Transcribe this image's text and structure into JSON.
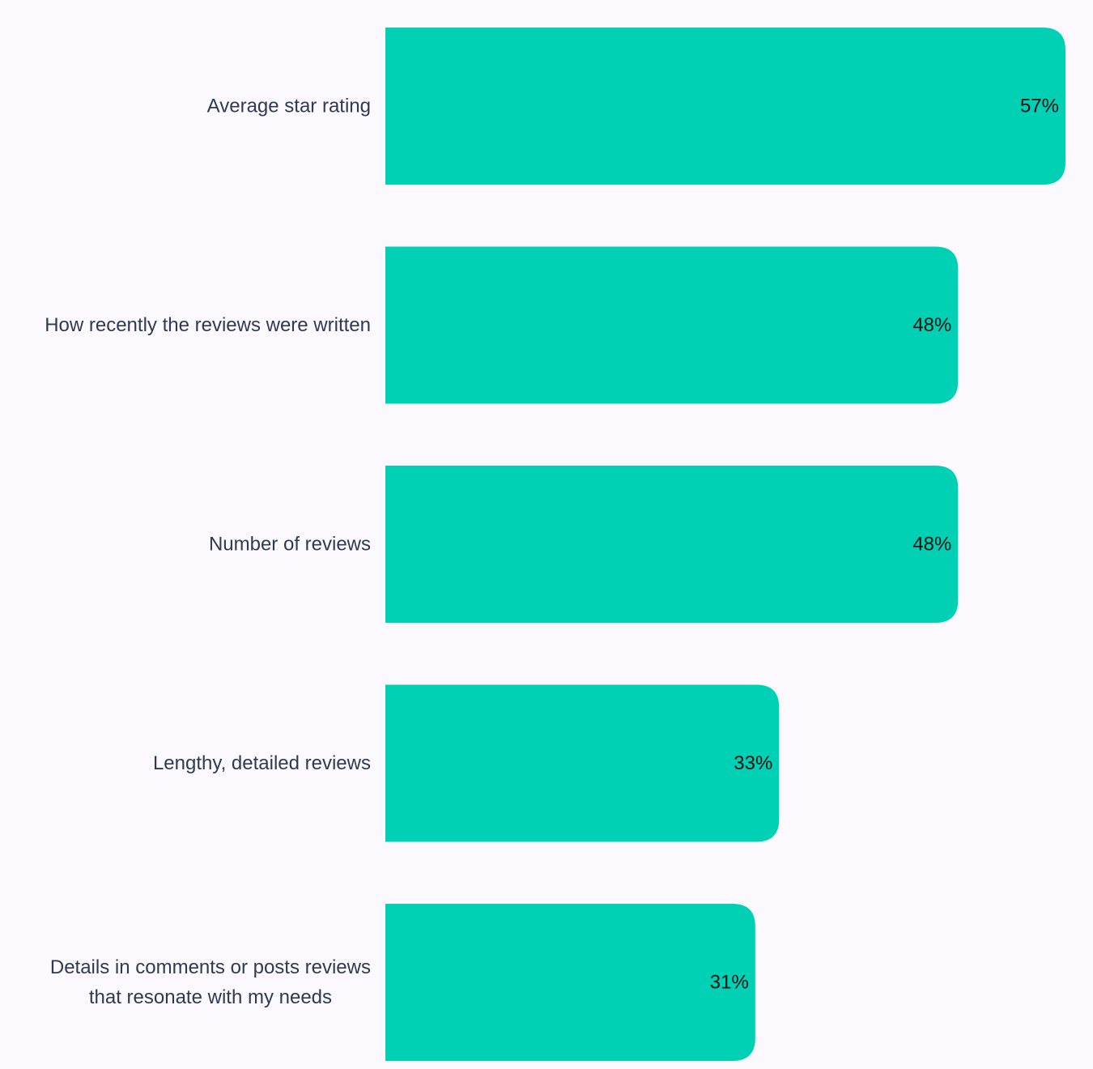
{
  "colors": {
    "background": "#fbf9fe",
    "bar": "#00d1b4",
    "category_text": "#2f3a52",
    "value_text": "#111111"
  },
  "chart_data": {
    "type": "bar",
    "orientation": "horizontal",
    "title": "",
    "xlabel": "",
    "ylabel": "",
    "grid": false,
    "legend": "none",
    "value_suffix": "%",
    "xlim": [
      0,
      57
    ],
    "categories": [
      [
        "Average star rating"
      ],
      [
        "How recently the reviews were written"
      ],
      [
        "Number of reviews"
      ],
      [
        "Lengthy, detailed reviews"
      ],
      [
        "Details in comments or posts reviews",
        "that resonate with my needs"
      ]
    ],
    "values": [
      57,
      48,
      48,
      33,
      31
    ],
    "value_labels": [
      "57%",
      "48%",
      "48%",
      "33%",
      "31%"
    ]
  }
}
